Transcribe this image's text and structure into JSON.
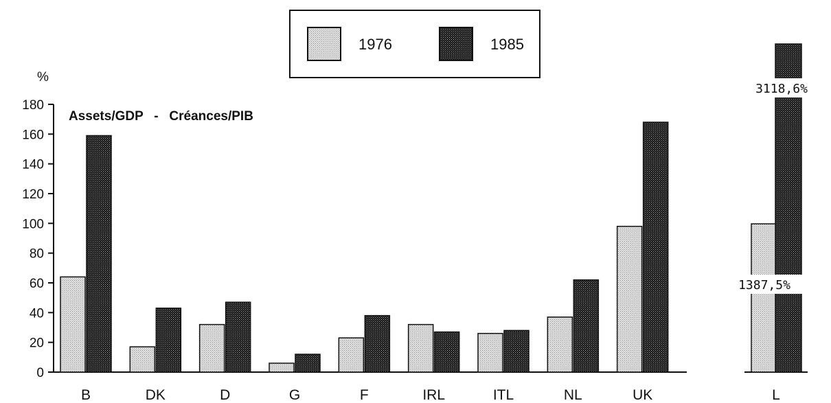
{
  "chart_data": {
    "type": "bar",
    "title": "Assets/GDP   -   Créances/PIB",
    "ylabel": "%",
    "ylim": [
      0,
      180
    ],
    "yticks": [
      "0",
      "20",
      "40",
      "60",
      "80",
      "100",
      "120",
      "140",
      "160",
      "180"
    ],
    "categories": [
      "B",
      "DK",
      "D",
      "G",
      "F",
      "IRL",
      "ITL",
      "NL",
      "UK"
    ],
    "series": [
      {
        "name": "1976",
        "values": [
          64,
          17,
          32,
          6,
          23,
          32,
          26,
          37,
          98
        ]
      },
      {
        "name": "1985",
        "values": [
          159,
          43,
          47,
          12,
          38,
          27,
          28,
          62,
          168
        ]
      }
    ],
    "outlier": {
      "category": "L",
      "values": [
        1387.5,
        3118.6
      ],
      "labels": [
        "1387,5%",
        "3118,6%"
      ]
    },
    "legend_position": "top-center",
    "colors": {
      "1976": "#d8d8d8",
      "1985": "#1a1a1a"
    },
    "grid": false
  }
}
